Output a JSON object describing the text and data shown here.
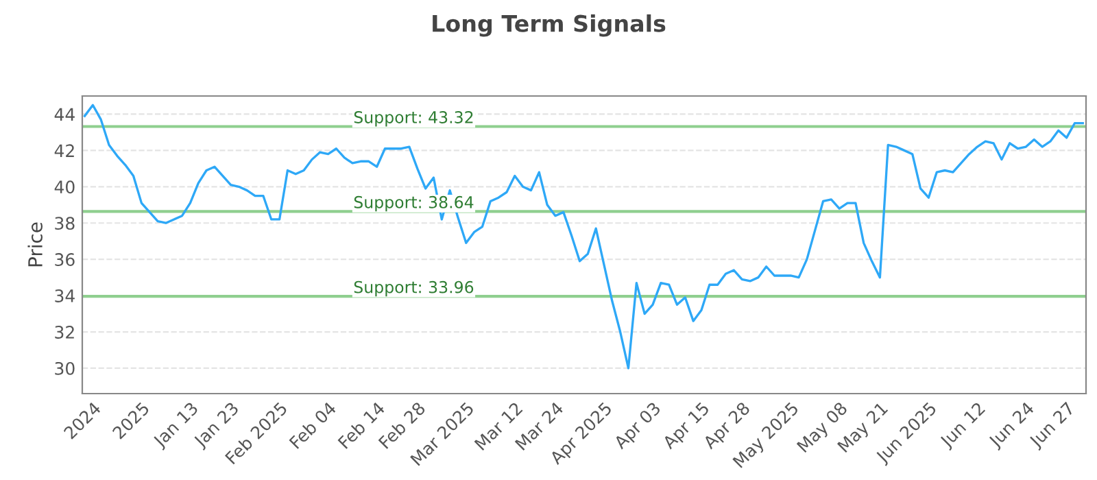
{
  "chart_data": {
    "type": "line",
    "title": "Long Term Signals",
    "ylabel": "Price",
    "categories": [
      null,
      "2024",
      null,
      null,
      null,
      null,
      null,
      "2025",
      null,
      null,
      null,
      null,
      null,
      "Jan 13",
      null,
      null,
      null,
      null,
      "Jan 23",
      null,
      null,
      null,
      null,
      null,
      "Feb 2025",
      null,
      null,
      null,
      null,
      null,
      "Feb 04",
      null,
      null,
      null,
      null,
      null,
      "Feb 14",
      null,
      null,
      null,
      null,
      "Feb 28",
      null,
      null,
      null,
      null,
      null,
      "Mar 2025",
      null,
      null,
      null,
      null,
      null,
      "Mar 12",
      null,
      null,
      null,
      null,
      "Mar 24",
      null,
      null,
      null,
      null,
      null,
      "Apr 2025",
      null,
      null,
      null,
      null,
      null,
      "Apr 03",
      null,
      null,
      null,
      null,
      null,
      "Apr 15",
      null,
      null,
      null,
      null,
      "Apr 28",
      null,
      null,
      null,
      null,
      null,
      "May 2025",
      null,
      null,
      null,
      null,
      null,
      "May 08",
      null,
      null,
      null,
      null,
      "May 21",
      null,
      null,
      null,
      null,
      null,
      "Jun 2025",
      null,
      null,
      null,
      null,
      null,
      "Jun 12",
      null,
      null,
      null,
      null,
      null,
      "Jun 24",
      null,
      null,
      null,
      null,
      "Jun 27",
      null,
      null
    ],
    "series": [
      {
        "color": "#2ea8f7",
        "values": [
          43.9,
          44.5,
          43.7,
          42.3,
          41.7,
          41.2,
          40.6,
          39.1,
          38.6,
          38.1,
          38.0,
          38.2,
          38.4,
          39.1,
          40.2,
          40.9,
          41.1,
          40.6,
          40.1,
          40.0,
          39.8,
          39.5,
          39.5,
          38.2,
          38.2,
          40.9,
          40.7,
          40.9,
          41.5,
          41.9,
          41.8,
          42.1,
          41.6,
          41.3,
          41.4,
          41.4,
          41.1,
          42.1,
          42.1,
          42.1,
          42.2,
          41.0,
          39.9,
          40.5,
          38.2,
          39.8,
          38.3,
          36.9,
          37.5,
          37.8,
          39.2,
          39.4,
          39.7,
          40.6,
          40.0,
          39.8,
          40.8,
          39.0,
          38.4,
          38.6,
          37.3,
          35.9,
          36.3,
          37.7,
          35.7,
          33.7,
          32.0,
          30.0,
          34.7,
          33.0,
          33.5,
          34.7,
          34.6,
          33.5,
          33.9,
          32.6,
          33.2,
          34.6,
          34.6,
          35.2,
          35.4,
          34.9,
          34.8,
          35.0,
          35.6,
          35.1,
          35.1,
          35.1,
          35.0,
          36.0,
          37.6,
          39.2,
          39.3,
          38.8,
          39.1,
          39.1,
          36.9,
          35.9,
          35.0,
          42.3,
          42.2,
          42.0,
          41.8,
          39.9,
          39.4,
          40.8,
          40.9,
          40.8,
          41.3,
          41.8,
          42.2,
          42.5,
          42.4,
          41.5,
          42.4,
          42.1,
          42.2,
          42.6,
          42.2,
          42.5,
          43.1,
          42.7,
          43.5,
          43.5
        ]
      }
    ],
    "ylim": [
      28.6,
      45.0
    ],
    "yticks": [
      30,
      32,
      34,
      36,
      38,
      40,
      42,
      44
    ],
    "ref_lines": [
      {
        "axis": "y",
        "value": 43.32,
        "label": "Support: 43.32",
        "color": "#8fcf8f"
      },
      {
        "axis": "y",
        "value": 38.64,
        "label": "Support: 38.64",
        "color": "#8fcf8f"
      },
      {
        "axis": "y",
        "value": 33.96,
        "label": "Support: 33.96",
        "color": "#8fcf8f"
      }
    ],
    "grid": "y",
    "marker": "none",
    "line_style": "solid",
    "legend": false
  }
}
